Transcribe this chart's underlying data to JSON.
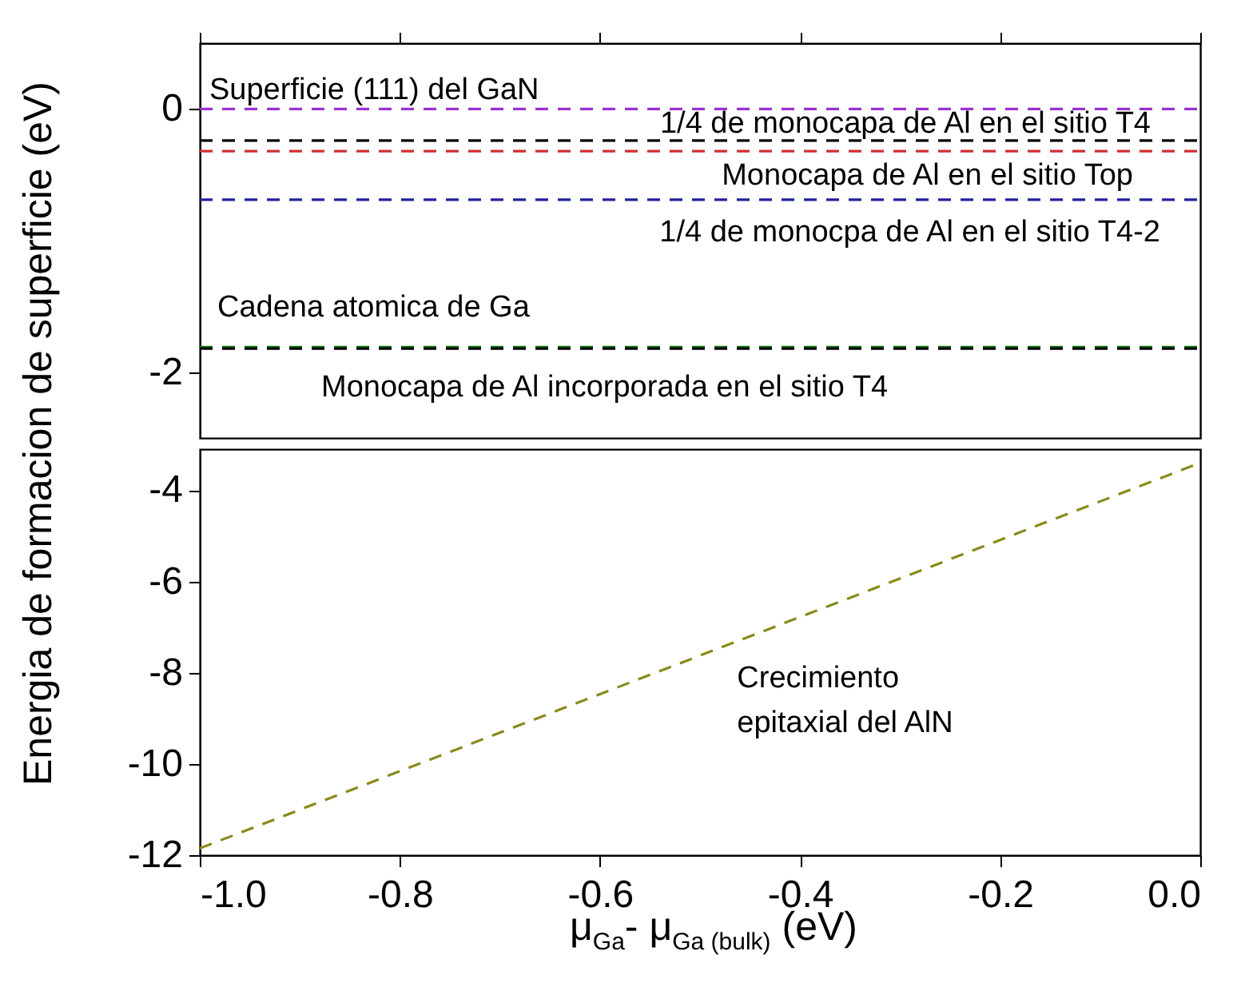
{
  "chart_data": [
    {
      "type": "line",
      "xlim": [
        -1,
        0
      ],
      "xticks": [
        -1,
        -0.8,
        -0.6,
        -0.4,
        -0.2,
        0
      ],
      "ylim": [
        -2.5,
        0.5
      ],
      "yticks": [
        0,
        -2
      ],
      "tick_labels": "y",
      "ref_lines": [
        {
          "axis": "y",
          "value": 0,
          "label": "Superficie (111) del GaN",
          "color": "#9b30d0",
          "line_style": "dashed"
        },
        {
          "axis": "y",
          "value": -0.24,
          "label": "1/4 de monocapa de Al en el sitio T4",
          "color": "#000000",
          "line_style": "dashed"
        },
        {
          "axis": "y",
          "value": -0.32,
          "label": "Monocapa de Al en el sitio Top",
          "color": "#d03030",
          "line_style": "dashed"
        },
        {
          "axis": "y",
          "value": -0.69,
          "label": "1/4 de monocpa de Al en el sitio T4-2",
          "color": "#2020a0",
          "line_style": "dashed"
        },
        {
          "axis": "y",
          "value": -1.81,
          "label": "Cadena atomica de Ga",
          "color": "#108010",
          "line_style": "dashed"
        },
        {
          "axis": "y",
          "value": -1.82,
          "label": "Monocapa de Al incorporada en el sitio T4",
          "color": "#000000",
          "line_style": "dashed"
        }
      ]
    },
    {
      "type": "line",
      "line_style": "dashed",
      "xlim": [
        -1,
        0
      ],
      "xticks": [
        {
          "value": -1,
          "label": "-1.0"
        },
        -0.8,
        -0.6,
        -0.4,
        -0.2,
        {
          "value": 0,
          "label": "0.0"
        }
      ],
      "ylim": [
        -12,
        -3.1
      ],
      "yticks": [
        -4,
        -6,
        -8,
        -10,
        -12
      ],
      "xlabel": "μ$_{Ga}$- μ$_{Ga (bulk)}$ (eV)",
      "ylabel": "Energia de formacion de superficie (eV)",
      "series": [
        {
          "name": "Crecimiento epitaxial del AlN",
          "color": "#8a8a1a",
          "x": [
            -1,
            0
          ],
          "values": [
            -11.85,
            -3.4
          ]
        }
      ]
    }
  ]
}
